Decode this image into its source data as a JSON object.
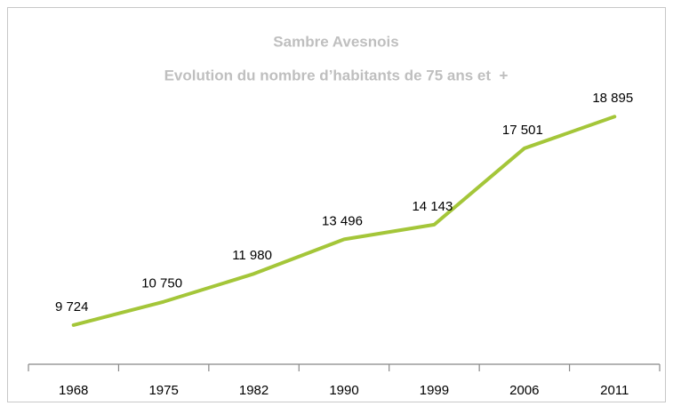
{
  "chart_data": {
    "type": "line",
    "title": "Sambre Avesnois",
    "subtitle": "Evolution du nombre d’habitants de 75 ans et  +",
    "categories": [
      "1968",
      "1975",
      "1982",
      "1990",
      "1999",
      "2006",
      "2011"
    ],
    "values": [
      9724,
      10750,
      11980,
      13496,
      14143,
      17501,
      18895
    ],
    "value_labels": [
      "9 724",
      "10 750",
      "11 980",
      "13 496",
      "14 143",
      "17 501",
      "18 895"
    ],
    "color": "#a4c639",
    "ylim": [
      8000,
      20000
    ]
  }
}
